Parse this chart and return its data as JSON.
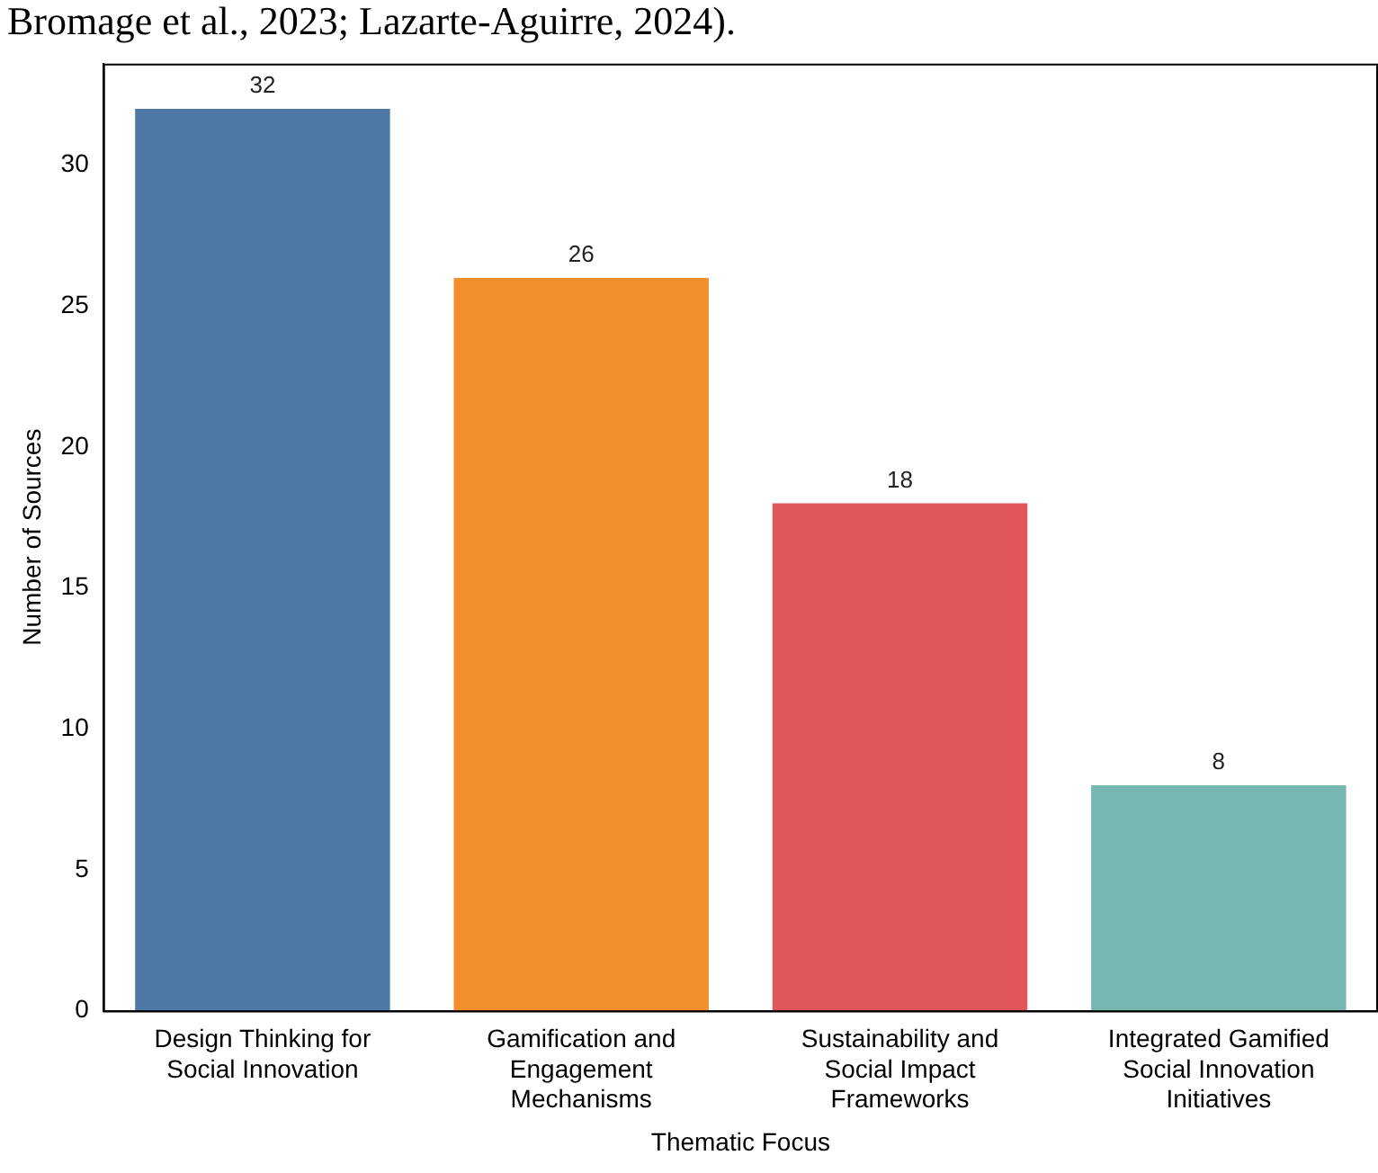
{
  "chart_data": {
    "type": "bar",
    "xlabel": "Thematic Focus",
    "ylabel": "Number of Sources",
    "categories": [
      "Design Thinking for Social Innovation",
      "Gamification and Engagement Mechanisms",
      "Sustainability and Social Impact Frameworks",
      "Integrated Gamified Social Innovation Initiatives"
    ],
    "values": [
      32,
      26,
      18,
      8
    ],
    "colors": [
      "#4e79a7",
      "#f28e2b",
      "#e15759",
      "#76b7b2"
    ],
    "ylim": [
      0,
      33.6
    ],
    "yticks": [
      0,
      5,
      10,
      15,
      20,
      25,
      30
    ],
    "grid": false,
    "legend": false,
    "data_labels": true,
    "annotations": [
      "Bromage et al., 2023; Lazarte-Aguirre, 2024)."
    ]
  }
}
